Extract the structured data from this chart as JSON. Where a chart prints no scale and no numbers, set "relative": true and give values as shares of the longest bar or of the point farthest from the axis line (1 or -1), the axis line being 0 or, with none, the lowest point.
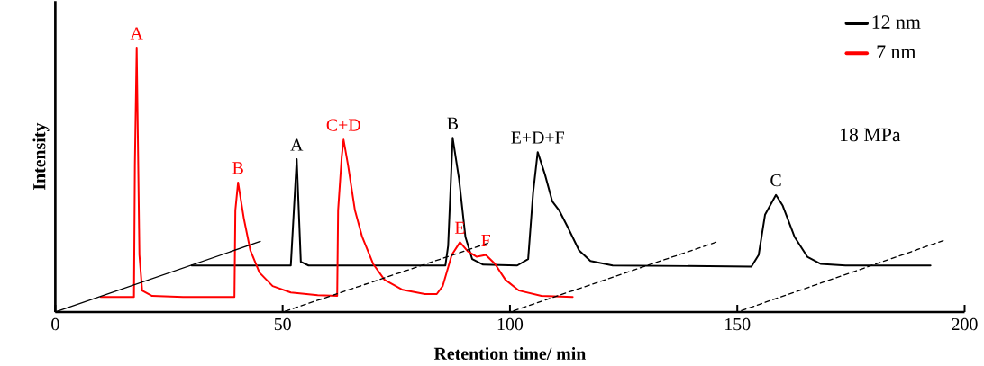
{
  "chart_data": {
    "type": "line",
    "relative": true,
    "xlabel": "Retention time/ min",
    "ylabel": "Intensity",
    "xlim": [
      0,
      200
    ],
    "xticks": [
      0,
      50,
      100,
      150,
      200
    ],
    "legend": "top right",
    "grid": false,
    "series": [
      {
        "name": "12 nm",
        "color": "#000000",
        "x": [
          30,
          51.8,
          53.1,
          54,
          55.7,
          85.8,
          86.4,
          87.4,
          88.8,
          90.2,
          91.7,
          94.1,
          101.6,
          104,
          105.1,
          106.1,
          107.7,
          109.3,
          110.8,
          112.8,
          115.2,
          117.7,
          122.6,
          153.1,
          154.7,
          156.1,
          158.5,
          160,
          162.6,
          165.4,
          168.3,
          173.8,
          192.5
        ],
        "values": [
          0.176,
          0.176,
          0.578,
          0.19,
          0.176,
          0.176,
          0.25,
          0.659,
          0.503,
          0.284,
          0.2,
          0.179,
          0.176,
          0.2,
          0.453,
          0.605,
          0.52,
          0.419,
          0.385,
          0.318,
          0.233,
          0.193,
          0.176,
          0.172,
          0.216,
          0.368,
          0.443,
          0.402,
          0.284,
          0.209,
          0.182,
          0.176,
          0.176
        ]
      },
      {
        "name": "7 nm",
        "color": "#ff0000",
        "x": [
          10,
          17.3,
          17.5,
          17.9,
          18.5,
          19.1,
          21.3,
          28.1,
          39.4,
          39.6,
          40.2,
          41.5,
          42.9,
          44.9,
          47.8,
          51.8,
          57.7,
          62,
          62.2,
          63,
          63.4,
          64.4,
          65.9,
          67.5,
          69.9,
          72.4,
          76.4,
          81.3,
          83.9,
          85.2,
          87.2,
          89,
          90.7,
          92.7,
          94.7,
          96.7,
          99,
          102,
          106.9,
          113.8
        ],
        "values": [
          0.057,
          0.057,
          0.554,
          1,
          0.216,
          0.081,
          0.061,
          0.057,
          0.057,
          0.385,
          0.49,
          0.351,
          0.233,
          0.149,
          0.098,
          0.074,
          0.064,
          0.061,
          0.385,
          0.588,
          0.652,
          0.554,
          0.385,
          0.284,
          0.182,
          0.122,
          0.084,
          0.068,
          0.068,
          0.098,
          0.216,
          0.264,
          0.23,
          0.209,
          0.216,
          0.182,
          0.122,
          0.081,
          0.061,
          0.057
        ]
      },
      {
        "color": "#000000",
        "line_style": "solid",
        "x": [
          0,
          45.1
        ],
        "values": [
          0,
          0.267
        ]
      },
      {
        "color": "#000000",
        "line_style": "dashed",
        "x": [
          50,
          95.1
        ],
        "values": [
          0,
          0.26
        ]
      },
      {
        "color": "#000000",
        "line_style": "dashed",
        "x": [
          100,
          145.3
        ],
        "values": [
          0,
          0.264
        ]
      },
      {
        "color": "#000000",
        "line_style": "dashed",
        "x": [
          150,
          195.3
        ],
        "values": [
          0,
          0.27
        ]
      }
    ],
    "annotations": [
      {
        "text": "A",
        "x": 17.9,
        "y": 1
      },
      {
        "text": "B",
        "x": 40.2,
        "y": 0.49
      },
      {
        "text": "C+D",
        "x": 63.4,
        "y": 0.652
      },
      {
        "text": "E",
        "x": 89,
        "y": 0.264
      },
      {
        "text": "F",
        "x": 94.7,
        "y": 0.216
      },
      {
        "text": "A",
        "x": 53.1,
        "y": 0.578
      },
      {
        "text": "B",
        "x": 87.4,
        "y": 0.659
      },
      {
        "text": "E+D+F",
        "x": 106.1,
        "y": 0.605
      },
      {
        "text": "C",
        "x": 158.5,
        "y": 0.443
      },
      "18 MPa"
    ]
  }
}
